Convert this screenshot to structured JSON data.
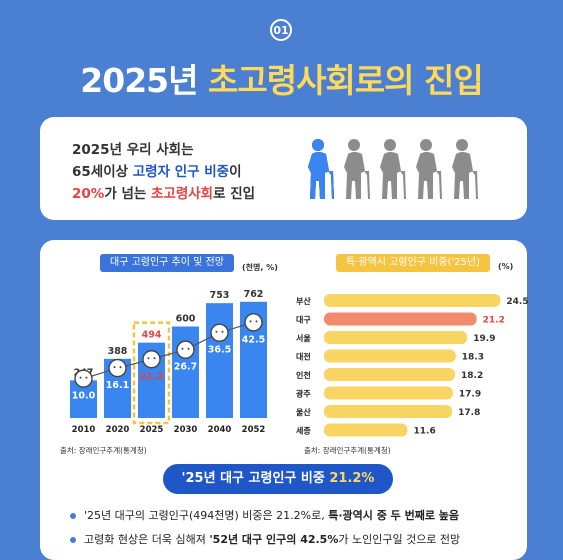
{
  "section_number": "01",
  "title": {
    "prefix": "2025년",
    "highlight": "초고령사회로의 진입"
  },
  "intro": {
    "line1": "2025년 우리 사회는",
    "line2_a": "65세이상 ",
    "line2_b": "고령자 인구 비중",
    "line2_c": "이",
    "line3_a": "20%",
    "line3_b": "가 넘는 ",
    "line3_c": "초고령사회",
    "line3_d": "로 진입"
  },
  "left_chart": {
    "title": "대구 고령인구 추이 및 전망",
    "unit": "(천명, %)",
    "source": "출처: 장래인구추계(통계청)"
  },
  "right_chart": {
    "title": "특·광역시 고령인구 비중('25년)",
    "unit": "(%)",
    "source": "출처: 장래인구추계(통계청)"
  },
  "summary": {
    "prefix": "'25년 대구 고령인구 비중 ",
    "value": "21.2%"
  },
  "bullets": [
    {
      "a": "'25년 대구의 고령인구(494천명) 비중은 21.2%로, ",
      "b": "특·광역시 중 두 번째로 높음",
      "c": ""
    },
    {
      "a": "고령화 현상은 더욱 심해져 ",
      "b": "'52년 대구 인구의 42.5%",
      "c": "가 노인인구일 것으로 전망"
    }
  ],
  "colors": {
    "blue": "#3a86f0",
    "dark_blue": "#1f57c9",
    "red": "#e5433f",
    "yellow": "#f8d463",
    "salmon": "#f28a6c",
    "highlight_yellow": "#ffd95a"
  },
  "chart_data": [
    {
      "type": "bar",
      "title": "대구 고령인구 추이 및 전망",
      "categories": [
        "2010",
        "2020",
        "2025",
        "2030",
        "2040",
        "2052"
      ],
      "series": [
        {
          "values": [
            247,
            388,
            494,
            600,
            753,
            762
          ]
        },
        {
          "values": [
            10.0,
            16.1,
            21.2,
            26.7,
            36.5,
            42.5
          ]
        }
      ],
      "highlight": "2025"
    },
    {
      "type": "bar",
      "title": "특·광역시 고령인구 비중('25년)",
      "orientation": "horizontal",
      "categories": [
        "부산",
        "대구",
        "서울",
        "대전",
        "인천",
        "광주",
        "울산",
        "세종"
      ],
      "values": [
        24.5,
        21.2,
        19.9,
        18.3,
        18.2,
        17.9,
        17.8,
        11.6
      ],
      "highlight": "대구"
    }
  ]
}
